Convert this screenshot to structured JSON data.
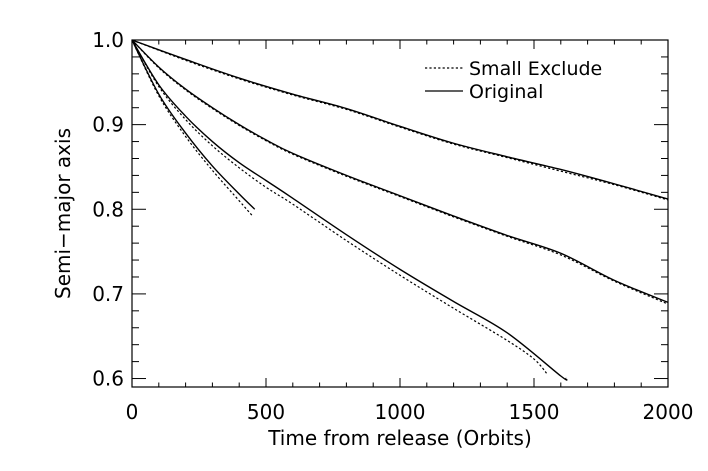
{
  "chart_data": {
    "type": "line",
    "xlabel": "Time from release (Orbits)",
    "ylabel": "Semi−major axis",
    "xlim": [
      0,
      2000
    ],
    "ylim": [
      0.59,
      1.0
    ],
    "xticks": [
      0,
      500,
      1000,
      1500,
      2000
    ],
    "xtick_labels": [
      "0",
      "500",
      "1000",
      "1500",
      "2000"
    ],
    "yticks": [
      0.6,
      0.7,
      0.8,
      0.9,
      1.0
    ],
    "ytick_labels": [
      "0.6",
      "0.7",
      "0.8",
      "0.9",
      "1.0"
    ],
    "grid": false,
    "legend_position": "top-right",
    "legend": [
      {
        "label": "Small Exclude",
        "style": "dotted"
      },
      {
        "label": "Original",
        "style": "solid"
      }
    ],
    "series": [
      {
        "style": "solid",
        "color": "#000000",
        "x": [
          0,
          100,
          200,
          300,
          400,
          458
        ],
        "y": [
          1.0,
          0.936,
          0.89,
          0.851,
          0.818,
          0.8
        ]
      },
      {
        "style": "dotted",
        "color": "#000000",
        "x": [
          0,
          100,
          200,
          300,
          400,
          450
        ],
        "y": [
          1.0,
          0.934,
          0.886,
          0.846,
          0.81,
          0.792
        ]
      },
      {
        "style": "solid",
        "color": "#000000",
        "x": [
          0,
          100,
          200,
          300,
          400,
          500,
          600,
          800,
          1000,
          1200,
          1400,
          1600,
          1620
        ],
        "y": [
          1.0,
          0.947,
          0.91,
          0.88,
          0.855,
          0.834,
          0.813,
          0.77,
          0.729,
          0.691,
          0.654,
          0.603,
          0.6
        ]
      },
      {
        "style": "dotted",
        "color": "#000000",
        "x": [
          0,
          100,
          200,
          300,
          400,
          500,
          600,
          800,
          1000,
          1200,
          1400,
          1500,
          1550
        ],
        "y": [
          1.0,
          0.945,
          0.906,
          0.875,
          0.849,
          0.826,
          0.806,
          0.763,
          0.722,
          0.683,
          0.645,
          0.623,
          0.605
        ]
      },
      {
        "style": "solid",
        "color": "#000000",
        "x": [
          0,
          100,
          200,
          300,
          400,
          500,
          600,
          800,
          1000,
          1200,
          1400,
          1600,
          1800,
          2000
        ],
        "y": [
          1.0,
          0.968,
          0.942,
          0.92,
          0.9,
          0.882,
          0.866,
          0.84,
          0.816,
          0.792,
          0.769,
          0.748,
          0.716,
          0.69
        ]
      },
      {
        "style": "dotted",
        "color": "#000000",
        "x": [
          0,
          100,
          200,
          300,
          400,
          500,
          600,
          800,
          1000,
          1200,
          1400,
          1600,
          1800,
          2000
        ],
        "y": [
          1.0,
          0.967,
          0.941,
          0.919,
          0.899,
          0.881,
          0.865,
          0.839,
          0.815,
          0.791,
          0.768,
          0.746,
          0.715,
          0.688
        ]
      },
      {
        "style": "solid",
        "color": "#000000",
        "x": [
          0,
          200,
          400,
          600,
          800,
          1000,
          1200,
          1400,
          1600,
          1800,
          2000
        ],
        "y": [
          1.0,
          0.977,
          0.955,
          0.936,
          0.919,
          0.898,
          0.878,
          0.862,
          0.847,
          0.83,
          0.812
        ]
      },
      {
        "style": "dotted",
        "color": "#000000",
        "x": [
          0,
          200,
          400,
          600,
          800,
          1000,
          1200,
          1400,
          1600,
          1800,
          2000
        ],
        "y": [
          1.0,
          0.976,
          0.954,
          0.935,
          0.918,
          0.897,
          0.877,
          0.861,
          0.845,
          0.829,
          0.811
        ]
      }
    ]
  }
}
